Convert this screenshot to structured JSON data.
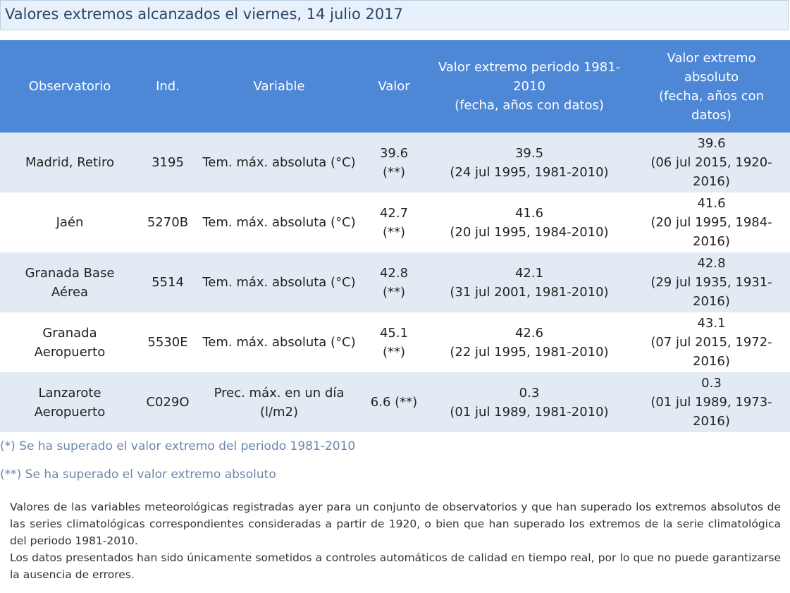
{
  "title": "Valores extremos alcanzados el viernes, 14 julio 2017",
  "table": {
    "headers": {
      "observatorio": "Observatorio",
      "ind": "Ind.",
      "variable": "Variable",
      "valor": "Valor",
      "periodo": [
        "Valor extremo periodo 1981-",
        "2010",
        "(fecha, años con datos)"
      ],
      "absoluto": [
        "Valor extremo",
        "absoluto",
        "(fecha, años con",
        "datos)"
      ]
    },
    "rows": [
      {
        "observatorio": [
          "Madrid, Retiro"
        ],
        "ind": "3195",
        "variable": [
          "Tem. máx. absoluta (°C)"
        ],
        "valor": [
          "39.6",
          "(**)"
        ],
        "periodo": [
          "39.5",
          "(24 jul 1995, 1981-2010)"
        ],
        "absoluto": [
          "39.6",
          "(06 jul 2015, 1920-",
          "2016)"
        ]
      },
      {
        "observatorio": [
          "Jaén"
        ],
        "ind": "5270B",
        "variable": [
          "Tem. máx. absoluta (°C)"
        ],
        "valor": [
          "42.7",
          "(**)"
        ],
        "periodo": [
          "41.6",
          "(20 jul 1995, 1984-2010)"
        ],
        "absoluto": [
          "41.6",
          "(20 jul 1995, 1984-",
          "2016)"
        ]
      },
      {
        "observatorio": [
          "Granada Base",
          "Aérea"
        ],
        "ind": "5514",
        "variable": [
          "Tem. máx. absoluta (°C)"
        ],
        "valor": [
          "42.8",
          "(**)"
        ],
        "periodo": [
          "42.1",
          "(31 jul 2001, 1981-2010)"
        ],
        "absoluto": [
          "42.8",
          "(29 jul 1935, 1931-",
          "2016)"
        ]
      },
      {
        "observatorio": [
          "Granada",
          "Aeropuerto"
        ],
        "ind": "5530E",
        "variable": [
          "Tem. máx. absoluta (°C)"
        ],
        "valor": [
          "45.1",
          "(**)"
        ],
        "periodo": [
          "42.6",
          "(22 jul 1995, 1981-2010)"
        ],
        "absoluto": [
          "43.1",
          "(07 jul 2015, 1972-",
          "2016)"
        ]
      },
      {
        "observatorio": [
          "Lanzarote",
          "Aeropuerto"
        ],
        "ind": "C029O",
        "variable": [
          "Prec. máx. en un día",
          "(l/m2)"
        ],
        "valor": [
          "6.6 (**)"
        ],
        "periodo": [
          "0.3",
          "(01 jul 1989, 1981-2010)"
        ],
        "absoluto": [
          "0.3",
          "(01 jul 1989, 1973-",
          "2016)"
        ]
      }
    ]
  },
  "notes": {
    "single": "(*) Se ha superado el valor extremo del periodo 1981-2010",
    "double": "(**) Se ha superado el valor extremo absoluto"
  },
  "description": {
    "paragraph1": "Valores de las variables meteorológicas registradas ayer para un conjunto de observatorios y que han superado los extremos absolutos de las series climatológicas correspondientes consideradas a partir de 1920, o bien que han superado los extremos de la serie climatológica del periodo 1981-2010.",
    "paragraph2": "Los datos presentados han sido únicamente sometidos a controles automáticos de calidad en tiempo real, por lo que no puede garantizarse la ausencia de errores."
  },
  "colors": {
    "header_background": "#4d87d5",
    "row_alternate": "#e2ebf4",
    "title_background": "#e8f1fb",
    "note_text": "#6b86ab"
  }
}
